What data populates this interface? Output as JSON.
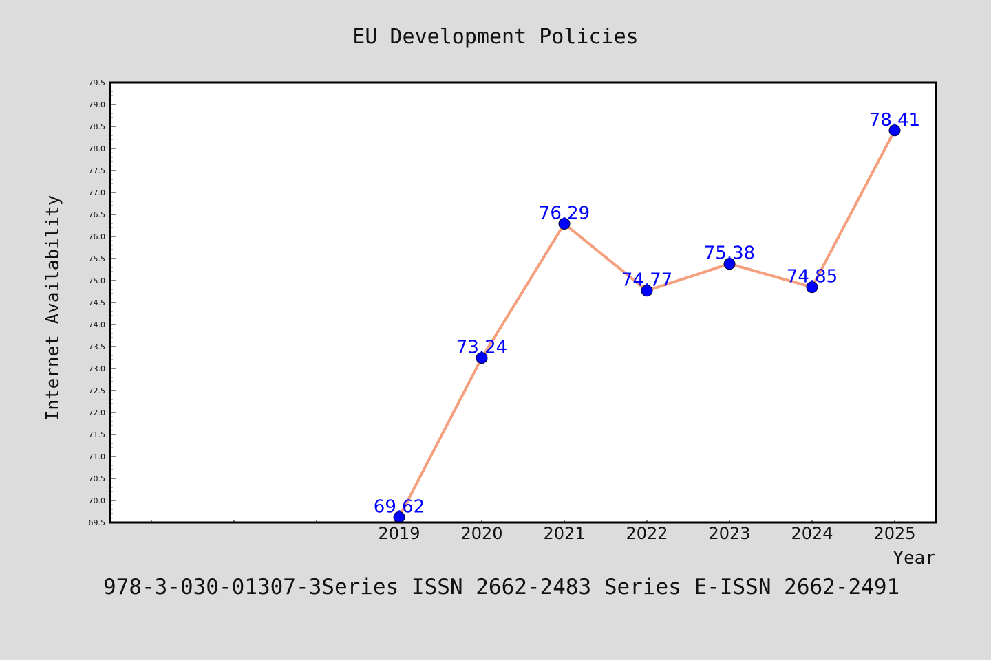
{
  "chart_data": {
    "type": "line",
    "title": "EU Development Policies",
    "xlabel": "Year",
    "ylabel": "Internet Availability",
    "x": [
      "2019",
      "2020",
      "2021",
      "2022",
      "2023",
      "2024",
      "2025"
    ],
    "series": [
      {
        "values": [
          69.62,
          73.24,
          76.29,
          74.77,
          75.38,
          74.85,
          78.41
        ]
      }
    ],
    "data_labels": [
      "69.62",
      "73.24",
      "76.29",
      "74.77",
      "75.38",
      "74.85",
      "78.41"
    ],
    "ylim": [
      69.5,
      79.5
    ],
    "yticks": [
      "69.5",
      "70.0",
      "70.5",
      "71.0",
      "71.5",
      "72.0",
      "72.5",
      "73.0",
      "73.5",
      "74.0",
      "74.5",
      "75.0",
      "75.5",
      "76.0",
      "76.5",
      "77.0",
      "77.5",
      "78.0",
      "78.5",
      "79.0",
      "79.5"
    ],
    "grid": false,
    "line_color": "#f4a07e",
    "marker_color": "#0000ff",
    "label_color": "#0000ff"
  },
  "footer": "978-3-030-01307-3Series ISSN 2662-2483 Series E-ISSN 2662-2491"
}
